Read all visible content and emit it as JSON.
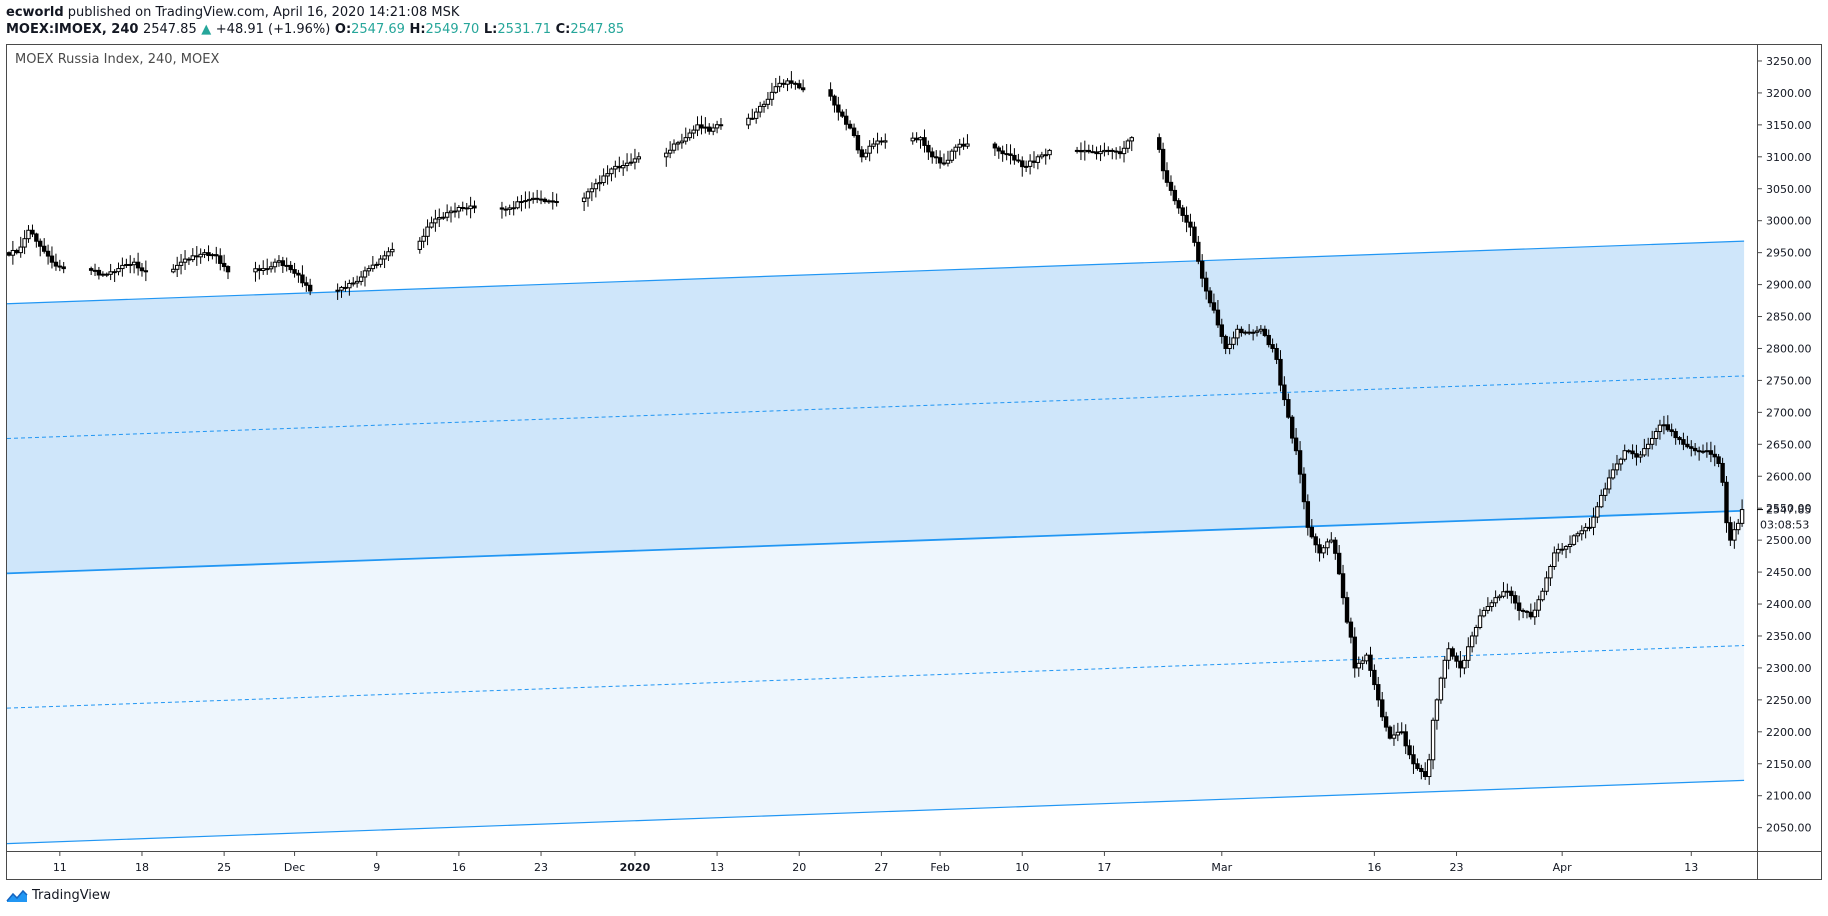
{
  "header": {
    "publisher": "ecworld",
    "published_text": "published on TradingView.com, April 16, 2020 14:21:08 MSK",
    "symbol": "MOEX:IMOEX, 240",
    "last": "2547.85",
    "change_arrow": "▲",
    "change": "+48.91 (+1.96%)",
    "o_label": "O:",
    "o_val": "2547.69",
    "h_label": "H:",
    "h_val": "2549.70",
    "l_label": "L:",
    "l_val": "2531.71",
    "c_label": "C:",
    "c_val": "2547.85"
  },
  "pane": {
    "title": "MOEX Russia Index, 240, MOEX"
  },
  "price_tag": {
    "price": "2547.85",
    "countdown": "03:08:53"
  },
  "brand": {
    "name": "TradingView",
    "icon": "tradingview-logo-icon"
  },
  "colors": {
    "channel_line": "#2196f3",
    "channel_fill_upper": "#cfe6fa",
    "channel_fill_lower": "#eef6fd",
    "candle": "#000000",
    "up_text": "#26a69a"
  },
  "chart_data": {
    "type": "candlestick",
    "title": "MOEX Russia Index, 240, MOEX",
    "ylim": [
      2015,
      3275
    ],
    "y_ticks": [
      2050,
      2100,
      2150,
      2200,
      2250,
      2300,
      2350,
      2400,
      2450,
      2500,
      2550,
      2600,
      2650,
      2700,
      2750,
      2800,
      2850,
      2900,
      2950,
      3000,
      3050,
      3100,
      3150,
      3200,
      3250
    ],
    "y_tick_labels": [
      "2050.00",
      "2100.00",
      "2150.00",
      "2200.00",
      "2250.00",
      "2300.00",
      "2350.00",
      "2400.00",
      "2450.00",
      "2500.00",
      "2550.00",
      "2600.00",
      "2650.00",
      "2700.00",
      "2750.00",
      "2800.00",
      "2850.00",
      "2900.00",
      "2950.00",
      "3000.00",
      "3050.00",
      "3100.00",
      "3150.00",
      "3200.00",
      "3250.00"
    ],
    "x_ticks": [
      {
        "label": "11",
        "d": 4
      },
      {
        "label": "18",
        "d": 11
      },
      {
        "label": "25",
        "d": 18
      },
      {
        "label": "Dec",
        "d": 24
      },
      {
        "label": "9",
        "d": 31
      },
      {
        "label": "16",
        "d": 38
      },
      {
        "label": "23",
        "d": 45
      },
      {
        "label": "2020",
        "d": 53,
        "bold": true
      },
      {
        "label": "13",
        "d": 60
      },
      {
        "label": "20",
        "d": 67
      },
      {
        "label": "27",
        "d": 74
      },
      {
        "label": "Feb",
        "d": 79
      },
      {
        "label": "10",
        "d": 86
      },
      {
        "label": "17",
        "d": 93
      },
      {
        "label": "Mar",
        "d": 103
      },
      {
        "label": "16",
        "d": 116
      },
      {
        "label": "23",
        "d": 123
      },
      {
        "label": "Apr",
        "d": 132
      },
      {
        "label": "13",
        "d": 143
      }
    ],
    "x_day_range": [
      -0.5,
      148.6
    ],
    "channel": {
      "upper": [
        [
          -0.5,
          2870
        ],
        [
          147.5,
          2968
        ]
      ],
      "upper_mid": [
        [
          -0.5,
          2659
        ],
        [
          147.5,
          2757
        ]
      ],
      "middle": [
        [
          -0.5,
          2448
        ],
        [
          147.5,
          2546
        ]
      ],
      "lower_mid": [
        [
          -0.5,
          2237
        ],
        [
          147.5,
          2335
        ]
      ],
      "lower": [
        [
          -0.5,
          2025
        ],
        [
          147.5,
          2124
        ]
      ]
    },
    "series": [
      {
        "type": "candles",
        "points": [
          {
            "d": 0,
            "c": 2950
          },
          {
            "d": 1,
            "c": 2985
          },
          {
            "d": 2,
            "c": 2960
          },
          {
            "d": 3,
            "c": 2935
          },
          {
            "d": 4,
            "c": 2925
          },
          {
            "d": 7,
            "c": 2915
          },
          {
            "d": 8,
            "c": 2920
          },
          {
            "d": 9,
            "c": 2930
          },
          {
            "d": 10,
            "c": 2935
          },
          {
            "d": 11,
            "c": 2920
          },
          {
            "d": 14,
            "c": 2935
          },
          {
            "d": 15,
            "c": 2945
          },
          {
            "d": 16,
            "c": 2950
          },
          {
            "d": 17,
            "c": 2945
          },
          {
            "d": 18,
            "c": 2920
          },
          {
            "d": 21,
            "c": 2925
          },
          {
            "d": 22,
            "c": 2935
          },
          {
            "d": 23,
            "c": 2930
          },
          {
            "d": 24,
            "c": 2915
          },
          {
            "d": 25,
            "c": 2890
          },
          {
            "d": 28,
            "c": 2895
          },
          {
            "d": 29,
            "c": 2905
          },
          {
            "d": 30,
            "c": 2925
          },
          {
            "d": 31,
            "c": 2940
          },
          {
            "d": 32,
            "c": 2955
          },
          {
            "d": 35,
            "c": 2990
          },
          {
            "d": 36,
            "c": 3005
          },
          {
            "d": 37,
            "c": 3015
          },
          {
            "d": 38,
            "c": 3020
          },
          {
            "d": 39,
            "c": 3020
          },
          {
            "d": 42,
            "c": 3020
          },
          {
            "d": 43,
            "c": 3030
          },
          {
            "d": 44,
            "c": 3035
          },
          {
            "d": 45,
            "c": 3030
          },
          {
            "d": 46,
            "c": 3030
          },
          {
            "d": 49,
            "c": 3050
          },
          {
            "d": 50,
            "c": 3070
          },
          {
            "d": 51,
            "c": 3085
          },
          {
            "d": 52,
            "c": 3090
          },
          {
            "d": 53,
            "c": 3100
          },
          {
            "d": 56,
            "c": 3120
          },
          {
            "d": 57,
            "c": 3130
          },
          {
            "d": 58,
            "c": 3150
          },
          {
            "d": 59,
            "c": 3140
          },
          {
            "d": 60,
            "c": 3150
          },
          {
            "d": 63,
            "c": 3170
          },
          {
            "d": 64,
            "c": 3190
          },
          {
            "d": 65,
            "c": 3215
          },
          {
            "d": 66,
            "c": 3215
          },
          {
            "d": 67,
            "c": 3205
          },
          {
            "d": 70,
            "c": 3170
          },
          {
            "d": 71,
            "c": 3145
          },
          {
            "d": 72,
            "c": 3100
          },
          {
            "d": 73,
            "c": 3120
          },
          {
            "d": 74,
            "c": 3125
          },
          {
            "d": 77,
            "c": 3130
          },
          {
            "d": 78,
            "c": 3100
          },
          {
            "d": 79,
            "c": 3090
          },
          {
            "d": 80,
            "c": 3115
          },
          {
            "d": 81,
            "c": 3120
          },
          {
            "d": 84,
            "c": 3105
          },
          {
            "d": 85,
            "c": 3095
          },
          {
            "d": 86,
            "c": 3085
          },
          {
            "d": 87,
            "c": 3100
          },
          {
            "d": 88,
            "c": 3110
          },
          {
            "d": 91,
            "c": 3110
          },
          {
            "d": 92,
            "c": 3105
          },
          {
            "d": 93,
            "c": 3110
          },
          {
            "d": 94,
            "c": 3105
          },
          {
            "d": 95,
            "c": 3130
          },
          {
            "d": 98,
            "c": 3060
          },
          {
            "d": 99,
            "c": 3020
          },
          {
            "d": 100,
            "c": 2990
          },
          {
            "d": 101,
            "c": 2910
          },
          {
            "d": 102,
            "c": 2860
          },
          {
            "d": 103,
            "c": 2800
          },
          {
            "d": 104,
            "c": 2830
          },
          {
            "d": 105,
            "c": 2825
          },
          {
            "d": 106,
            "c": 2830
          },
          {
            "d": 107,
            "c": 2800
          },
          {
            "d": 108,
            "c": 2720
          },
          {
            "d": 109,
            "c": 2640
          },
          {
            "d": 110,
            "c": 2520
          },
          {
            "d": 111,
            "c": 2480
          },
          {
            "d": 112,
            "c": 2500
          },
          {
            "d": 113,
            "c": 2410
          },
          {
            "d": 114,
            "c": 2300
          },
          {
            "d": 115,
            "c": 2320
          },
          {
            "d": 116,
            "c": 2250
          },
          {
            "d": 117,
            "c": 2190
          },
          {
            "d": 118,
            "c": 2200
          },
          {
            "d": 119,
            "c": 2150
          },
          {
            "d": 120,
            "c": 2130
          },
          {
            "d": 121,
            "c": 2250
          },
          {
            "d": 122,
            "c": 2330
          },
          {
            "d": 123,
            "c": 2300
          },
          {
            "d": 124,
            "c": 2350
          },
          {
            "d": 125,
            "c": 2390
          },
          {
            "d": 126,
            "c": 2410
          },
          {
            "d": 127,
            "c": 2420
          },
          {
            "d": 128,
            "c": 2390
          },
          {
            "d": 129,
            "c": 2380
          },
          {
            "d": 130,
            "c": 2420
          },
          {
            "d": 131,
            "c": 2480
          },
          {
            "d": 132,
            "c": 2490
          },
          {
            "d": 133,
            "c": 2510
          },
          {
            "d": 134,
            "c": 2520
          },
          {
            "d": 135,
            "c": 2570
          },
          {
            "d": 136,
            "c": 2610
          },
          {
            "d": 137,
            "c": 2640
          },
          {
            "d": 138,
            "c": 2630
          },
          {
            "d": 139,
            "c": 2650
          },
          {
            "d": 140,
            "c": 2680
          },
          {
            "d": 141,
            "c": 2670
          },
          {
            "d": 142,
            "c": 2650
          },
          {
            "d": 143,
            "c": 2640
          },
          {
            "d": 144,
            "c": 2640
          },
          {
            "d": 145,
            "c": 2620
          },
          {
            "d": 146,
            "c": 2500
          },
          {
            "d": 147,
            "c": 2547.85
          }
        ]
      }
    ]
  }
}
